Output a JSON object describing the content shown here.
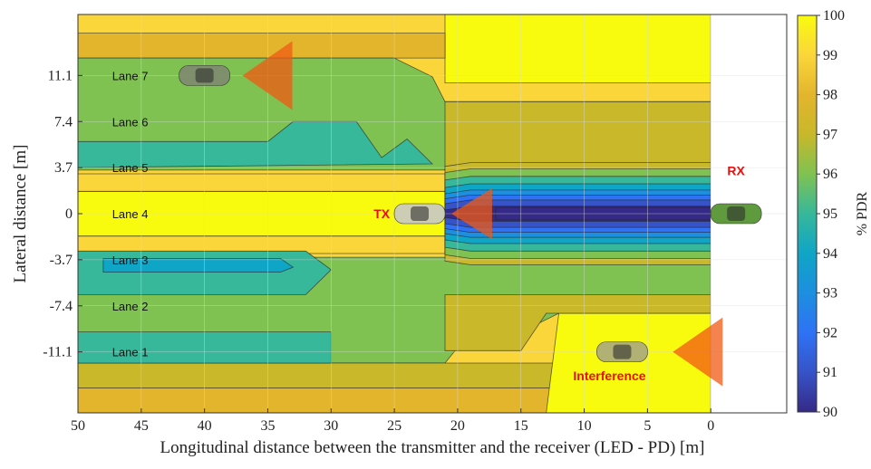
{
  "chart_data": {
    "type": "heatmap",
    "title": "",
    "xlabel": "Longitudinal distance between the transmitter and the receiver (LED - PD) [m]",
    "ylabel": "Lateral distance [m]",
    "x_reversed": true,
    "xlim": [
      -6,
      50
    ],
    "ylim": [
      -16,
      16
    ],
    "xticks": [
      50,
      45,
      40,
      35,
      30,
      25,
      20,
      15,
      10,
      5,
      0
    ],
    "yticks": [
      11.1,
      7.4,
      3.7,
      0,
      -3.7,
      -7.4,
      -11.1
    ],
    "ytick_labels": [
      "11.1",
      "7.4",
      "3.7",
      "0",
      "-3.7",
      "-7.4",
      "-11.1"
    ],
    "grid": true,
    "colorbar": {
      "label": "% PDR",
      "min": 90,
      "max": 100,
      "ticks": [
        100,
        99,
        98,
        97,
        96,
        95,
        94,
        93,
        92,
        91,
        90
      ]
    },
    "lanes": [
      {
        "label": "Lane 7",
        "y": 11.1
      },
      {
        "label": "Lane 6",
        "y": 7.4
      },
      {
        "label": "Lane 5",
        "y": 3.7
      },
      {
        "label": "Lane 4",
        "y": 0
      },
      {
        "label": "Lane 3",
        "y": -3.7
      },
      {
        "label": "Lane 2",
        "y": -7.4
      },
      {
        "label": "Lane 1",
        "y": -11.1
      }
    ],
    "annotations": {
      "tx": {
        "label": "TX",
        "x": 23,
        "y": 0
      },
      "rx": {
        "label": "RX",
        "x": -2,
        "y": 0
      },
      "interference": {
        "label": "Interference",
        "x": 8,
        "y": -13
      }
    },
    "vehicles": [
      {
        "role": "interferer-lane-7",
        "x": 40,
        "y": 11.1,
        "color": "#808a70"
      },
      {
        "role": "transmitter",
        "x": 23,
        "y": 0,
        "color": "#c8c8c8"
      },
      {
        "role": "receiver",
        "x": -2,
        "y": 0,
        "color": "#4f8f2a"
      },
      {
        "role": "interferer-lane-1",
        "x": 7,
        "y": -11.1,
        "color": "#a8a880"
      }
    ],
    "levels": [
      {
        "pdr": 100,
        "color": "#f9fb0e"
      },
      {
        "pdr": 99,
        "color": "#fbd63a"
      },
      {
        "pdr": 98,
        "color": "#e3b52d"
      },
      {
        "pdr": 97,
        "color": "#c8b82a"
      },
      {
        "pdr": 96,
        "color": "#7fc252"
      },
      {
        "pdr": 95,
        "color": "#37b89a"
      },
      {
        "pdr": 94,
        "color": "#0fa5c6"
      },
      {
        "pdr": 93,
        "color": "#1d8fdf"
      },
      {
        "pdr": 92,
        "color": "#2f72f5"
      },
      {
        "pdr": 91,
        "color": "#3653c8"
      },
      {
        "pdr": 90,
        "color": "#352a87"
      }
    ],
    "pdr_bands": [
      {
        "y_range": [
          16,
          14.5
        ],
        "x_range": [
          21,
          50
        ],
        "pdr": 98
      },
      {
        "y_range": [
          16,
          0
        ],
        "x_range": [
          0,
          21
        ],
        "pdr": 100,
        "note": "upper right region"
      },
      {
        "y_range": [
          3.7,
          -3.7
        ],
        "x_range": [
          21,
          50
        ],
        "pdr": 100,
        "note": "lane 4 core"
      },
      {
        "y_range": [
          1.5,
          -1.5
        ],
        "x_range": [
          0,
          17
        ],
        "pdr": 90,
        "note": "receiver center"
      },
      {
        "y_range": [
          -3,
          -5
        ],
        "x_range": [
          32,
          48
        ],
        "pdr": 94,
        "note": "lane 3 core"
      },
      {
        "y_range": [
          -12,
          -16
        ],
        "x_range": [
          0,
          12
        ],
        "pdr": 100,
        "note": "interference zone"
      }
    ]
  }
}
